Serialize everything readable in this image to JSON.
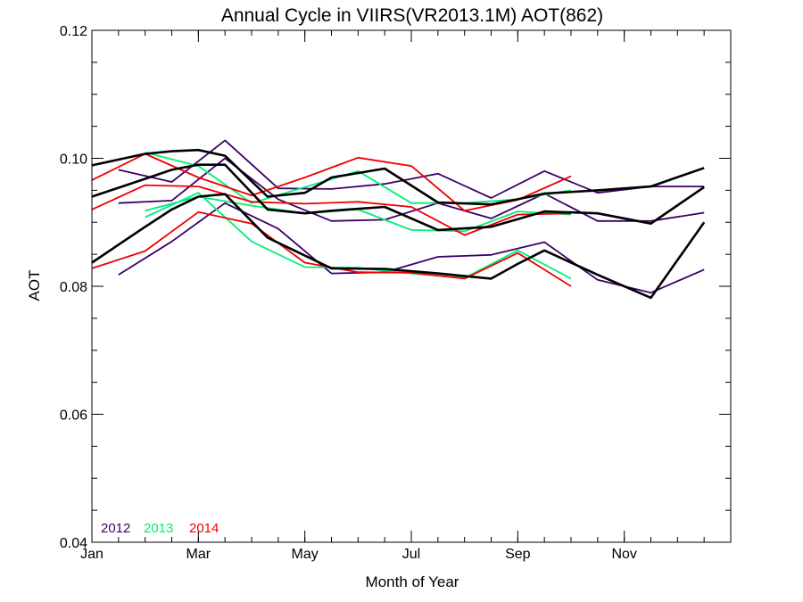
{
  "chart_data": {
    "type": "line",
    "title": "Annual Cycle in VIIRS(VR2013.1M) AOT(862)",
    "xlabel": "Month of Year",
    "ylabel": "AOT",
    "xlim": [
      1,
      13
    ],
    "ylim": [
      0.04,
      0.12
    ],
    "x_ticks": [
      {
        "x": 1,
        "label": "Jan"
      },
      {
        "x": 3,
        "label": "Mar"
      },
      {
        "x": 5,
        "label": "May"
      },
      {
        "x": 7,
        "label": "Jul"
      },
      {
        "x": 9,
        "label": "Sep"
      },
      {
        "x": 11,
        "label": "Nov"
      }
    ],
    "y_ticks": [
      {
        "y": 0.04,
        "label": "0.04"
      },
      {
        "y": 0.06,
        "label": "0.06"
      },
      {
        "y": 0.08,
        "label": "0.08"
      },
      {
        "y": 0.1,
        "label": "0.10"
      },
      {
        "y": 0.12,
        "label": "0.12"
      }
    ],
    "x_minor_step": 0.5,
    "y_minor_step": 0.005,
    "legend": {
      "placement": "bottom-left",
      "entries": [
        {
          "label": "2012",
          "color": "#3d0066"
        },
        {
          "label": "2013",
          "color": "#00ee77"
        },
        {
          "label": "2014",
          "color": "#ee0000"
        }
      ]
    },
    "series": [
      {
        "color": "#3d0066",
        "x": [
          1.5,
          2.5,
          3.5,
          4.5,
          5.5,
          6.5,
          7.5,
          8.5,
          9.5,
          10.5,
          11.5,
          12.5
        ],
        "values": [
          0.0982,
          0.0963,
          0.1028,
          0.0953,
          0.0952,
          0.096,
          0.0976,
          0.0938,
          0.098,
          0.0946,
          0.0956,
          0.0956
        ]
      },
      {
        "color": "#3d0066",
        "x": [
          1.5,
          2.5,
          3.5,
          4.5,
          5.5,
          6.5,
          7.5,
          8.5,
          9.5,
          10.5,
          11.5,
          12.5
        ],
        "values": [
          0.093,
          0.0934,
          0.1,
          0.0936,
          0.0902,
          0.0904,
          0.093,
          0.0906,
          0.0945,
          0.0902,
          0.0902,
          0.0915
        ]
      },
      {
        "color": "#3d0066",
        "x": [
          1.5,
          2.5,
          3.5,
          4.5,
          5.5,
          6.5,
          7.5,
          8.5,
          9.5,
          10.5,
          11.5,
          12.5
        ],
        "values": [
          0.0818,
          0.087,
          0.093,
          0.089,
          0.082,
          0.0822,
          0.0846,
          0.0849,
          0.0869,
          0.081,
          0.079,
          0.0826
        ]
      },
      {
        "color": "#00ee77",
        "x": [
          2.0,
          3.0,
          4.0,
          5.0,
          6.0,
          7.0,
          8.0,
          9.0,
          10.0
        ],
        "values": [
          0.1009,
          0.0988,
          0.093,
          0.0955,
          0.098,
          0.093,
          0.093,
          0.0936,
          0.095
        ]
      },
      {
        "color": "#00ee77",
        "x": [
          2.0,
          3.0,
          4.0,
          5.0,
          6.0,
          7.0,
          8.0,
          9.0,
          10.0
        ],
        "values": [
          0.0918,
          0.094,
          0.0926,
          0.0914,
          0.092,
          0.0888,
          0.0886,
          0.0917,
          0.0912
        ]
      },
      {
        "color": "#00ee77",
        "x": [
          2.0,
          3.0,
          4.0,
          5.0,
          6.0,
          7.0,
          8.0,
          9.0,
          10.0
        ],
        "values": [
          0.0908,
          0.0946,
          0.087,
          0.083,
          0.0829,
          0.082,
          0.0813,
          0.0856,
          0.0812
        ]
      },
      {
        "color": "#ee0000",
        "x": [
          1.0,
          2.0,
          3.0,
          4.0,
          5.0,
          6.0,
          7.0,
          8.0,
          9.0,
          10.0
        ],
        "values": [
          0.0966,
          0.1007,
          0.097,
          0.0942,
          0.097,
          0.1001,
          0.0988,
          0.0918,
          0.0935,
          0.0972
        ]
      },
      {
        "color": "#ee0000",
        "x": [
          1.0,
          2.0,
          3.0,
          4.0,
          5.0,
          6.0,
          7.0,
          8.0,
          9.0,
          10.0
        ],
        "values": [
          0.092,
          0.0958,
          0.0956,
          0.0932,
          0.0929,
          0.0932,
          0.0924,
          0.088,
          0.0912,
          0.0914
        ]
      },
      {
        "color": "#ee0000",
        "x": [
          1.0,
          2.0,
          3.0,
          4.0,
          5.0,
          6.0,
          7.0,
          8.0,
          9.0,
          10.0
        ],
        "values": [
          0.0828,
          0.0855,
          0.0916,
          0.0898,
          0.0837,
          0.0822,
          0.0821,
          0.0812,
          0.0852,
          0.08
        ]
      },
      {
        "color": "#000000",
        "x": [
          1,
          2,
          2.5,
          3,
          3.5,
          4.3,
          5,
          5.5,
          6.5,
          7.5,
          8.5,
          9.0,
          9.5,
          10.5,
          11.5,
          12.5
        ],
        "values": [
          0.0989,
          0.1007,
          0.1011,
          0.1013,
          0.1004,
          0.094,
          0.0946,
          0.097,
          0.0984,
          0.0931,
          0.0928,
          0.0936,
          0.0945,
          0.095,
          0.0956,
          0.0985
        ]
      },
      {
        "color": "#000000",
        "x": [
          1,
          2,
          2.5,
          3,
          3.5,
          4.3,
          5,
          5.5,
          6.5,
          7.5,
          8.5,
          9.0,
          9.5,
          10.5,
          11.5,
          12.5
        ],
        "values": [
          0.094,
          0.0968,
          0.0982,
          0.099,
          0.099,
          0.092,
          0.0914,
          0.0918,
          0.0924,
          0.0888,
          0.0893,
          0.0905,
          0.0917,
          0.0914,
          0.0898,
          0.0955
        ]
      },
      {
        "color": "#000000",
        "x": [
          1,
          2,
          2.5,
          3,
          3.5,
          4.3,
          5,
          5.5,
          6.5,
          7.5,
          8.5,
          9.0,
          9.5,
          10.5,
          11.5,
          12.5
        ],
        "values": [
          0.0837,
          0.0893,
          0.092,
          0.094,
          0.0944,
          0.0876,
          0.0848,
          0.0828,
          0.0827,
          0.082,
          0.0812,
          0.0835,
          0.0856,
          0.0818,
          0.0782,
          0.09
        ]
      }
    ]
  }
}
